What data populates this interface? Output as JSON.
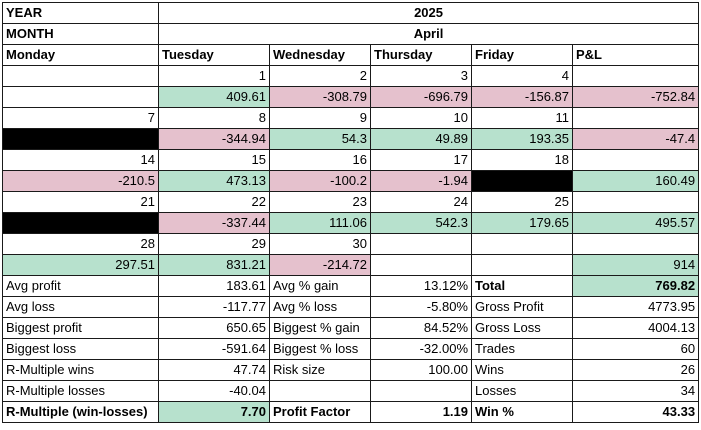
{
  "table": {
    "rows": [
      [
        "YEAR",
        "2025"
      ],
      [
        "MONTH",
        "April"
      ],
      [
        "Monday",
        "Tuesday",
        "Wednesday",
        "Thursday",
        "Friday",
        "P&L"
      ],
      [
        null,
        "1",
        "2",
        "3",
        "4",
        null
      ],
      [
        null,
        "409.61",
        "-308.79",
        "-696.79",
        "-156.87",
        "-752.84"
      ],
      [
        "7",
        "8",
        "9",
        "10",
        "11",
        null
      ],
      [
        null,
        "-344.94",
        "54.3",
        "49.89",
        "193.35",
        "-47.4"
      ],
      [
        "14",
        "15",
        "16",
        "17",
        "18",
        null
      ],
      [
        "-210.5",
        "473.13",
        "-100.2",
        "-1.94",
        null,
        "160.49"
      ],
      [
        "21",
        "22",
        "23",
        "24",
        "25",
        null
      ],
      [
        null,
        "-337.44",
        "111.06",
        "542.3",
        "179.65",
        "495.57"
      ],
      [
        "28",
        "29",
        "30",
        null,
        null,
        null
      ],
      [
        "297.51",
        "831.21",
        "-214.72",
        null,
        null,
        "914"
      ],
      [
        "Avg profit",
        "183.61",
        "Avg % gain",
        "13.12%",
        "Total",
        "769.82"
      ],
      [
        "Avg loss",
        "-117.77",
        "Avg % loss",
        "-5.80%",
        "Gross Profit",
        "4773.95"
      ],
      [
        "Biggest profit",
        "650.65",
        "Biggest % gain",
        "84.52%",
        "Gross Loss",
        "4004.13"
      ],
      [
        "Biggest loss",
        "-591.64",
        "Biggest % loss",
        "-32.00%",
        "Trades",
        "60"
      ],
      [
        "R-Multiple wins",
        "47.74",
        "Risk size",
        "100.00",
        "Wins",
        "26"
      ],
      [
        "R-Multiple losses",
        "-40.04",
        null,
        null,
        "Losses",
        "34"
      ],
      [
        "R-Multiple (win-losses)",
        "7.70",
        "Profit Factor",
        "1.19",
        "Win %",
        "43.33"
      ]
    ]
  }
}
